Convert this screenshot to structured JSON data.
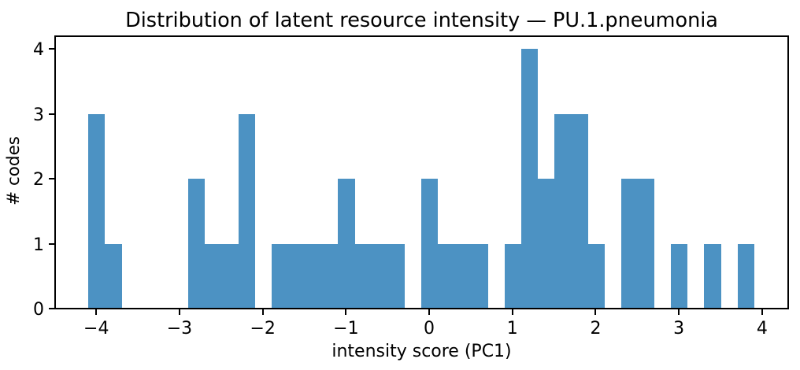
{
  "chart_data": {
    "type": "histogram",
    "title": "Distribution of latent resource intensity — PU.1.pneumonia",
    "xlabel": "intensity score (PC1)",
    "ylabel": "# codes",
    "bar_color": "#4c92c3",
    "axis_color": "#000000",
    "bin_start": -4.094,
    "bin_width": 0.2,
    "counts": [
      3,
      1,
      0,
      0,
      0,
      0,
      2,
      1,
      1,
      3,
      0,
      1,
      1,
      1,
      1,
      2,
      1,
      1,
      1,
      0,
      2,
      1,
      1,
      1,
      0,
      1,
      4,
      2,
      3,
      3,
      1,
      0,
      2,
      2,
      0,
      1,
      0,
      1,
      0,
      1
    ],
    "xticks": [
      -4,
      -3,
      -2,
      -1,
      0,
      1,
      2,
      3,
      4
    ],
    "yticks": [
      0,
      1,
      2,
      3,
      4
    ],
    "xlim": [
      -4.4945,
      4.3165
    ],
    "ylim": [
      0,
      4.2
    ],
    "grid": false,
    "legend": null
  }
}
